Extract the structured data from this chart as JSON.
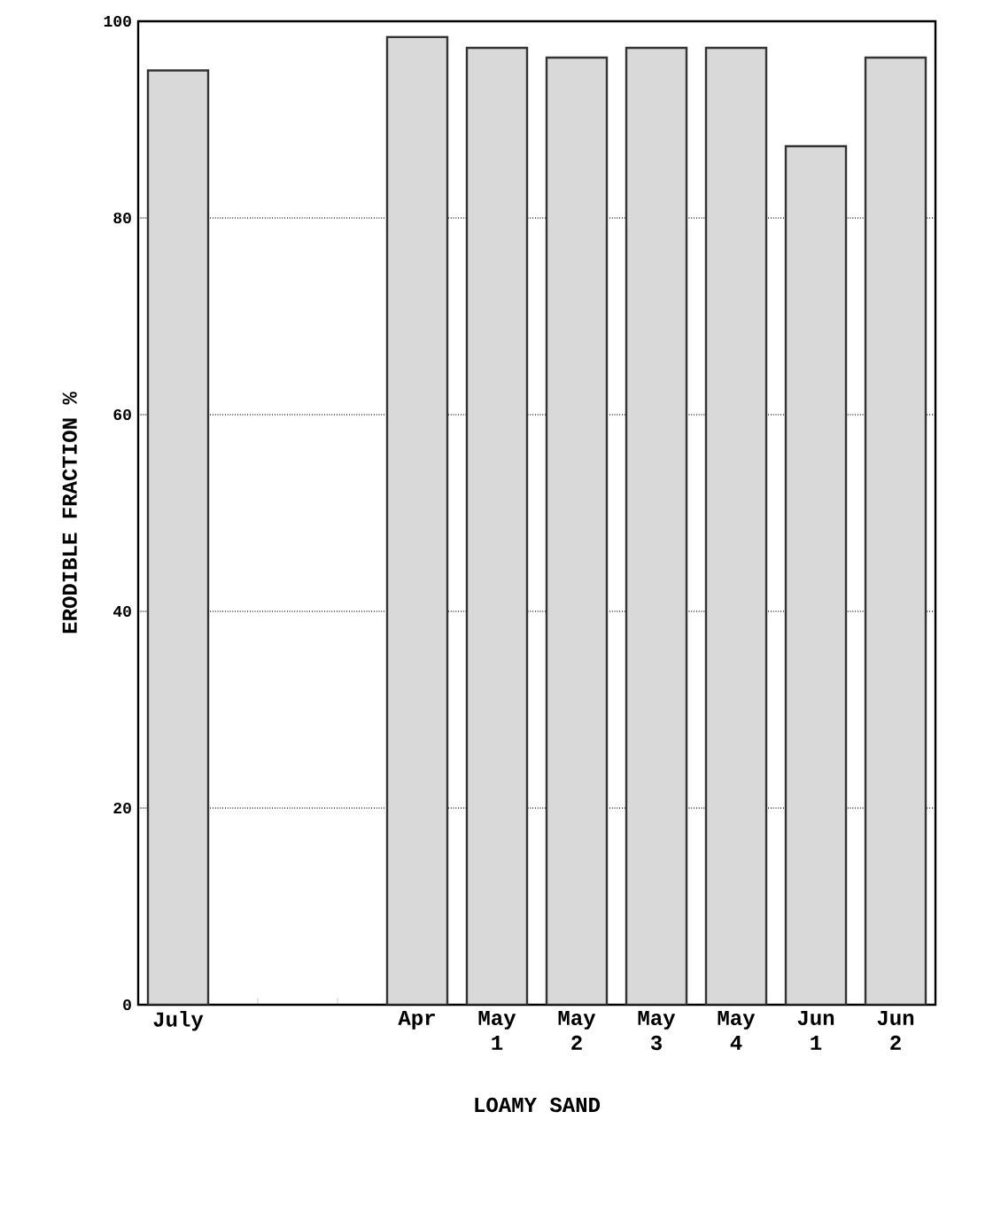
{
  "chart_data": {
    "type": "bar",
    "xlabel": "LOAMY SAND",
    "ylabel": "ERODIBLE FRACTION %",
    "categories": [
      "July",
      null,
      null,
      "Apr",
      "May 1",
      "May 2",
      "May 3",
      "May 4",
      "Jun 1",
      "Jun 2"
    ],
    "values": [
      95,
      null,
      null,
      98.4,
      97.3,
      96.3,
      97.3,
      97.3,
      87.3,
      96.3
    ],
    "color": "#d9d9d9",
    "ylim": [
      0,
      100
    ],
    "yticks": [
      0,
      20,
      40,
      60,
      80,
      100
    ],
    "grid": "y"
  }
}
